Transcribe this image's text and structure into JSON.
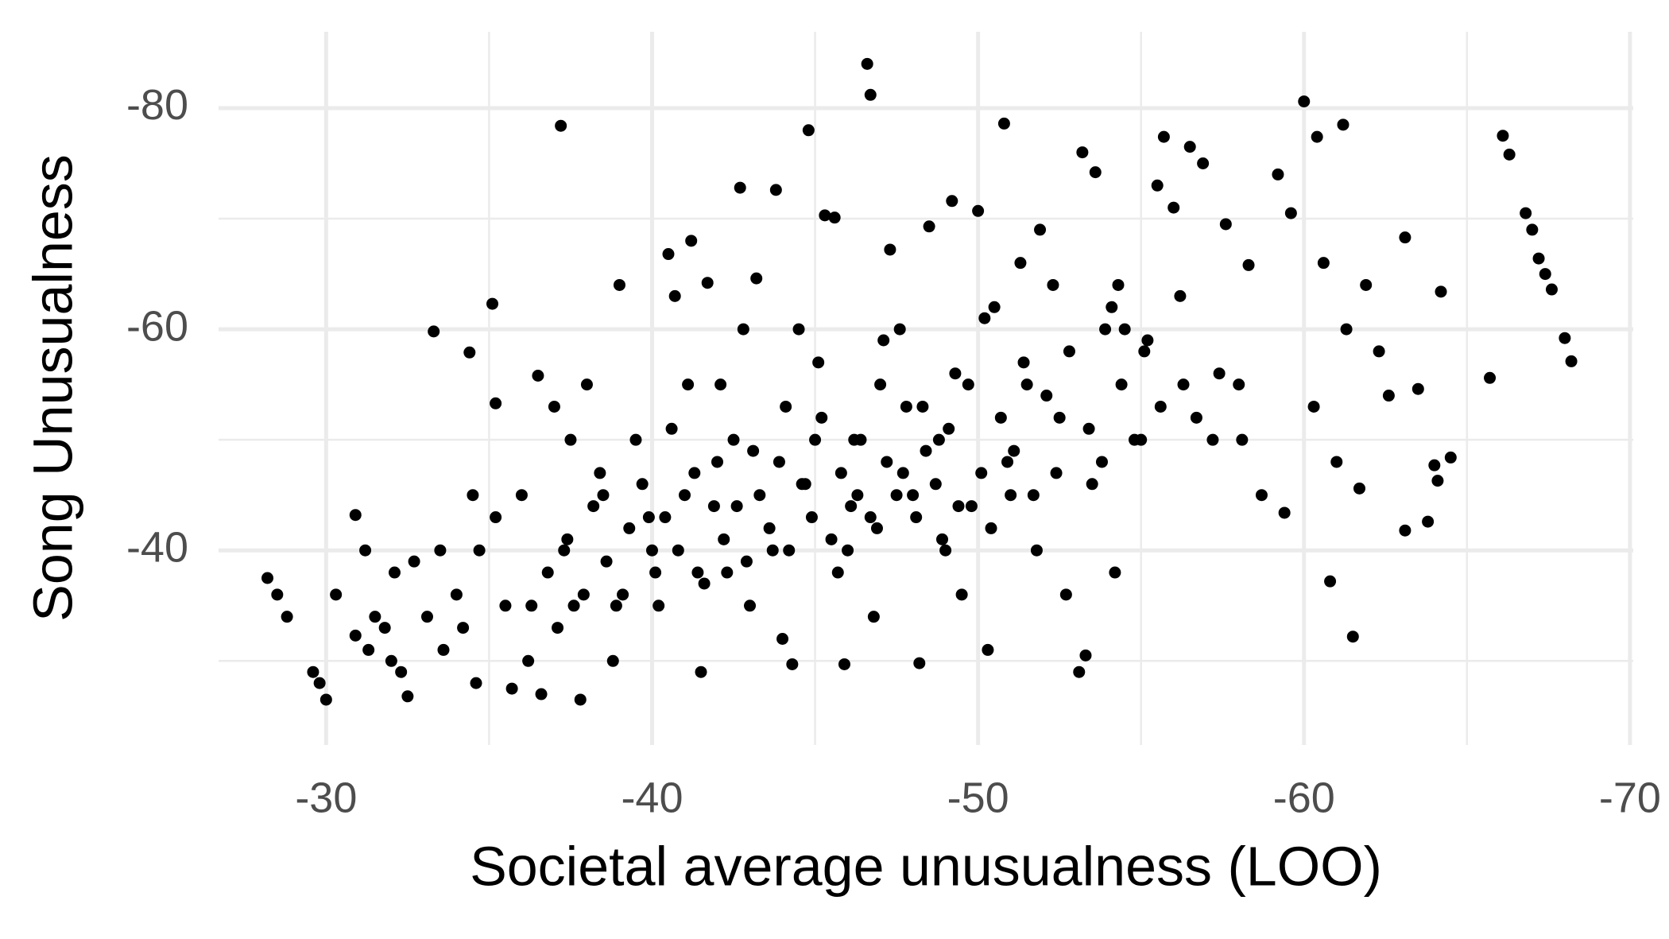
{
  "chart_data": {
    "type": "scatter",
    "x_label": "Societal average unusualness (LOO)",
    "y_label": "Song Unusualness",
    "color": "#000000",
    "xlim": [
      -26.7,
      -70.1
    ],
    "ylim": [
      -22.4,
      -86.9
    ],
    "xticks": [
      -30,
      -40,
      -50,
      -60,
      -70
    ],
    "yticks": [
      -40,
      -60,
      -80
    ],
    "xminorticks": [
      -35,
      -45,
      -55,
      -65
    ],
    "yminorticks": [
      -30,
      -50,
      -70
    ],
    "grid": true,
    "x": [
      -28.2,
      -28.5,
      -28.8,
      -29.6,
      -29.8,
      -30,
      -30.3,
      -30.9,
      -30.9,
      -31.2,
      -31.3,
      -31.5,
      -31.8,
      -32,
      -32.1,
      -32.3,
      -32.5,
      -32.7,
      -33.1,
      -33.3,
      -33.5,
      -33.6,
      -34,
      -34.2,
      -34.4,
      -34.5,
      -34.6,
      -34.7,
      -35.1,
      -35.2,
      -35.2,
      -35.5,
      -35.7,
      -36,
      -36.2,
      -36.5,
      -36.6,
      -37,
      -37.2,
      -37.5,
      -37.6,
      -37.8,
      -38,
      -38.5,
      -38.8,
      -39,
      -39.5,
      -40,
      -40.2,
      -40.5,
      -40.7,
      -41,
      -41.1,
      -41.2,
      -41.5,
      -41.7,
      -42,
      -42.3,
      -42.7,
      -42.8,
      -43,
      -43.2,
      -43.8,
      -44,
      -44.3,
      -44.5,
      -44.8,
      -45,
      -45.3,
      -45.6,
      -45.9,
      -46,
      -46.3,
      -46.6,
      -46.7,
      -46.8,
      -47,
      -47.3,
      -47.6,
      -48,
      -48.2,
      -48.5,
      -48.8,
      -49,
      -49.2,
      -49.5,
      -50,
      -50.3,
      -50.5,
      -50.8,
      -51,
      -51.5,
      -51.9,
      -52.3,
      -52.7,
      -53.1,
      -53.2,
      -53.3,
      -53.6,
      -53.9,
      -54.2,
      -54.5,
      -55,
      -55.5,
      -55.7,
      -56,
      -56.3,
      -56.5,
      -56.9,
      -57.2,
      -57.6,
      -58,
      -58.3,
      -58.7,
      -59.2,
      -59.4,
      -59.6,
      -60,
      -60.3,
      -60.4,
      -60.6,
      -60.8,
      -61,
      -61.2,
      -61.3,
      -61.5,
      -61.7,
      -61.9,
      -62.3,
      -62.6,
      -63.1,
      -63.1,
      -63.5,
      -63.8,
      -64,
      -64.1,
      -64.2,
      -64.5,
      -65.7,
      -66.1,
      -66.3,
      -66.8,
      -67,
      -67.2,
      -67.4,
      -67.6,
      -68,
      -68.2,
      -36.3,
      -36.8,
      -37.1,
      -37.4,
      -37.9,
      -38.2,
      -38.6,
      -38.9,
      -39.3,
      -39.7,
      -40.1,
      -40.4,
      -40.8,
      -41.3,
      -41.6,
      -41.9,
      -42.2,
      -42.5,
      -42.9,
      -43.3,
      -43.6,
      -43.9,
      -44.2,
      -44.6,
      -44.9,
      -45.2,
      -45.5,
      -45.8,
      -46.1,
      -46.4,
      -46.9,
      -47.2,
      -47.5,
      -47.8,
      -48.1,
      -48.4,
      -48.7,
      -49.1,
      -49.4,
      -49.7,
      -50.1,
      -50.4,
      -50.7,
      -51.1,
      -51.4,
      -51.7,
      -52.1,
      -52.4,
      -52.8,
      -53.4,
      -53.8,
      -54.1,
      -54.4,
      -54.8,
      -55.2,
      -55.6,
      -56.2,
      -56.7,
      -57.4,
      -58.1,
      -37.3,
      -38.4,
      -39.1,
      -39.9,
      -40.6,
      -41.4,
      -42.1,
      -42.6,
      -43.1,
      -43.7,
      -44.1,
      -44.7,
      -45.1,
      -45.7,
      -46.2,
      -46.7,
      -47.1,
      -47.7,
      -48.3,
      -48.9,
      -49.3,
      -49.8,
      -50.2,
      -50.9,
      -51.3,
      -51.8,
      -52.5,
      -53.5,
      -54.3,
      -55.1
    ],
    "values": [
      -37.5,
      -36,
      -34,
      -29,
      -28,
      -26.5,
      -36,
      -43.2,
      -32.3,
      -40,
      -31,
      -34,
      -33,
      -30,
      -38,
      -29,
      -26.8,
      -39,
      -34,
      -59.8,
      -40,
      -31,
      -36,
      -33,
      -57.9,
      -45,
      -28,
      -40,
      -62.3,
      -53.3,
      -43,
      -35,
      -27.5,
      -45,
      -30,
      -55.8,
      -27,
      -53,
      -78.4,
      -50,
      -35,
      -26.5,
      -55,
      -45,
      -30,
      -64,
      -50,
      -40,
      -35,
      -66.8,
      -63,
      -45,
      -55,
      -68,
      -29,
      -64.2,
      -48,
      -38,
      -72.8,
      -60,
      -35,
      -64.6,
      -72.6,
      -32,
      -29.7,
      -60,
      -78,
      -50,
      -70.3,
      -70.1,
      -29.7,
      -40,
      -45,
      -84,
      -81.2,
      -34,
      -55,
      -67.2,
      -60,
      -45,
      -29.8,
      -69.3,
      -50,
      -40,
      -71.6,
      -36,
      -70.7,
      -31,
      -62,
      -78.6,
      -45,
      -55,
      -69,
      -64,
      -36,
      -29,
      -76,
      -30.5,
      -74.2,
      -60,
      -38,
      -60,
      -50,
      -73,
      -77.4,
      -71,
      -55,
      -76.5,
      -75,
      -50,
      -69.5,
      -55,
      -65.8,
      -45,
      -74,
      -43.4,
      -70.5,
      -80.6,
      -53,
      -77.4,
      -66,
      -37.2,
      -48,
      -78.5,
      -60,
      -32.2,
      -45.6,
      -64,
      -58,
      -54,
      -68.3,
      -41.8,
      -54.6,
      -42.6,
      -47.7,
      -46.3,
      -63.4,
      -48.4,
      -55.6,
      -77.5,
      -75.8,
      -70.5,
      -69,
      -66.4,
      -65,
      -63.6,
      -59.2,
      -57.1,
      -35,
      -38,
      -33,
      -41,
      -36,
      -44,
      -39,
      -35,
      -42,
      -46,
      -38,
      -43,
      -40,
      -47,
      -37,
      -44,
      -41,
      -50,
      -39,
      -45,
      -42,
      -48,
      -40,
      -46,
      -43,
      -52,
      -41,
      -47,
      -44,
      -50,
      -42,
      -48,
      -45,
      -53,
      -43,
      -49,
      -46,
      -51,
      -44,
      -55,
      -47,
      -42,
      -52,
      -49,
      -57,
      -45,
      -54,
      -47,
      -58,
      -51,
      -48,
      -62,
      -55,
      -50,
      -59,
      -53,
      -63,
      -52,
      -56,
      -50,
      -40,
      -47,
      -36,
      -43,
      -51,
      -38,
      -55,
      -44,
      -49,
      -40,
      -53,
      -46,
      -57,
      -38,
      -50,
      -43,
      -59,
      -47,
      -53,
      -41,
      -56,
      -44,
      -61,
      -48,
      -66,
      -40,
      -52,
      -46,
      -64,
      -58
    ]
  }
}
